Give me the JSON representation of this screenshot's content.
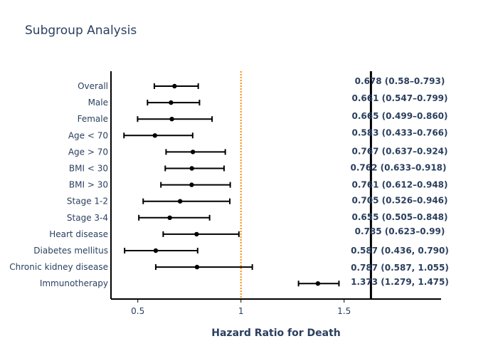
{
  "chart_data": {
    "type": "scatter",
    "subtype": "forest-plot",
    "title": "Subgroup Analysis",
    "xlabel": "Hazard Ratio for Death",
    "ylabel": "",
    "xlim": [
      0.37,
      1.97
    ],
    "xticks": [
      0.5,
      1,
      1.5
    ],
    "xtick_labels": [
      "0.5",
      "1",
      "1.5"
    ],
    "reference_line": {
      "x": 1,
      "style": "dotted",
      "color": "#ff8c00"
    },
    "label_column_line": {
      "x": 1.63,
      "color": "#000000"
    },
    "categories": [
      "Overall",
      "Male",
      "Female",
      "Age < 70",
      "Age > 70",
      "BMI < 30",
      "BMI > 30",
      "Stage 1-2⁠",
      "Stage 3-4",
      "Heart disease",
      "Diabetes mellitus",
      "Chronic kidney disease",
      "Immunotherapy"
    ],
    "series": [
      {
        "values": [
          0.678,
          0.661,
          0.665,
          0.583,
          0.767,
          0.762,
          0.761,
          0.705,
          0.655,
          0.785,
          0.587,
          0.787,
          1.373
        ],
        "ci_lower": [
          0.58,
          0.547,
          0.499,
          0.433,
          0.637,
          0.633,
          0.612,
          0.526,
          0.505,
          0.623,
          0.436,
          0.587,
          1.279
        ],
        "ci_upper": [
          0.793,
          0.799,
          0.86,
          0.766,
          0.924,
          0.918,
          0.948,
          0.946,
          0.848,
          0.99,
          0.79,
          1.055,
          1.475
        ]
      }
    ],
    "annotations": [
      "0.678 (0.58–0.793)",
      "0.661 (0.547–0.799)",
      "0.665 (0.499–0.860)",
      "0.583 (0.433–0.766)",
      "0.767 (0.637–0.924)",
      "0.762 (0.633–0.918)",
      "0.761 (0.612–0.948)",
      "0.705 (0.526–0.946)",
      "0.655 (0.505–0.848)",
      "0.785 (0.623–0.99)",
      "0.587 (0.436, 0.790)",
      "0.787 (0.587, 1.055)",
      "1.373 (1.279, 1.475)"
    ],
    "grid": false,
    "colors": {
      "text": "#2a3f5f",
      "marker": "#000000",
      "reference": "#ff8c00"
    }
  }
}
